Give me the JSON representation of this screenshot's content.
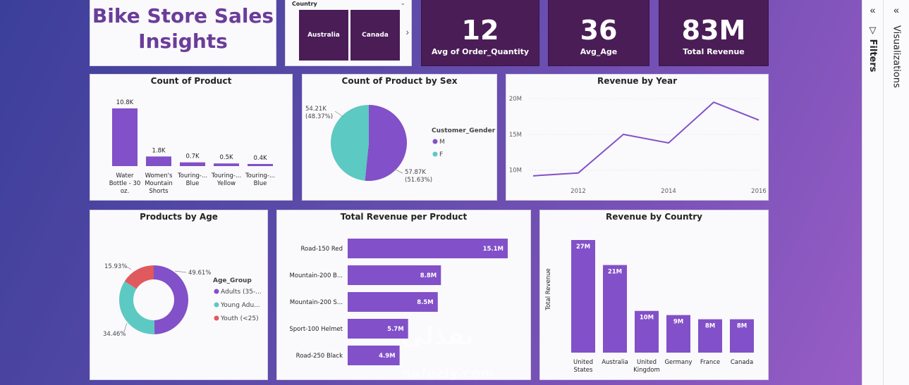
{
  "title": "Bike Store Sales Insights",
  "slicer": {
    "label": "Country",
    "options": [
      "Australia",
      "Canada"
    ]
  },
  "kpis": [
    {
      "value": "12",
      "label": "Avg of Order_Quantity"
    },
    {
      "value": "36",
      "label": "Avg_Age"
    },
    {
      "value": "83M",
      "label": "Total Revenue"
    }
  ],
  "panes": {
    "filters": "Filters",
    "visualizations": "Visualizations"
  },
  "colors": {
    "purple": "#8250c8",
    "teal": "#5cc9c3",
    "red": "#e0595f",
    "card": "#4a1d57"
  },
  "watermark": {
    "arabic": "نفذلي",
    "latin": "nafezly.com"
  },
  "chart_data": [
    {
      "id": "count_of_product",
      "type": "bar",
      "title": "Count of Product",
      "categories": [
        "Water Bottle - 30 oz.",
        "Women's Mountain Shorts",
        "Touring-... Blue",
        "Touring-... Yellow",
        "Touring-... Blue"
      ],
      "category_lines": [
        [
          "Water",
          "Bottle - 30",
          "oz."
        ],
        [
          "Women's",
          "Mountain",
          "Shorts"
        ],
        [
          "Touring-...",
          "Blue"
        ],
        [
          "Touring-...",
          "Yellow"
        ],
        [
          "Touring-...",
          "Blue"
        ]
      ],
      "values": [
        10.8,
        1.8,
        0.7,
        0.5,
        0.4
      ],
      "data_labels": [
        "10.8K",
        "1.8K",
        "0.7K",
        "0.5K",
        "0.4K"
      ],
      "unit": "K"
    },
    {
      "id": "count_by_sex",
      "type": "pie",
      "title": "Count of Product by Sex",
      "legend_title": "Customer_Gender",
      "slices": [
        {
          "name": "M",
          "value": 57.87,
          "pct": 51.63,
          "label": "57.87K",
          "pct_label": "(51.63%)"
        },
        {
          "name": "F",
          "value": 54.21,
          "pct": 48.37,
          "label": "54.21K",
          "pct_label": "(48.37%)"
        }
      ]
    },
    {
      "id": "revenue_by_year",
      "type": "line",
      "title": "Revenue by Year",
      "x": [
        2011,
        2012,
        2013,
        2014,
        2015,
        2016
      ],
      "y": [
        9.2,
        9.6,
        15.0,
        13.8,
        19.5,
        17.0
      ],
      "y_ticks": [
        "10M",
        "15M",
        "20M"
      ],
      "y_tick_values": [
        10,
        15,
        20
      ],
      "x_ticks": [
        "2012",
        "2014",
        "2016"
      ],
      "x_tick_values": [
        2012,
        2014,
        2016
      ],
      "xlim": [
        2011,
        2016
      ],
      "ylim": [
        8,
        21
      ]
    },
    {
      "id": "products_by_age",
      "type": "pie",
      "title": "Products by Age",
      "legend_title": "Age_Group",
      "slices": [
        {
          "name": "Adults (35-...",
          "pct": 49.61,
          "label": "49.61%"
        },
        {
          "name": "Young Adu...",
          "pct": 34.46,
          "label": "34.46%"
        },
        {
          "name": "Youth (<25)",
          "pct": 15.93,
          "label": "15.93%"
        }
      ]
    },
    {
      "id": "revenue_per_product",
      "type": "bar",
      "orientation": "horizontal",
      "title": "Total Revenue per Product",
      "categories": [
        "Road-150 Red",
        "Mountain-200 B...",
        "Mountain-200 S...",
        "Sport-100 Helmet",
        "Road-250 Black"
      ],
      "values": [
        15.1,
        8.8,
        8.5,
        5.7,
        4.9
      ],
      "data_labels": [
        "15.1M",
        "8.8M",
        "8.5M",
        "5.7M",
        "4.9M"
      ]
    },
    {
      "id": "revenue_by_country",
      "type": "bar",
      "title": "Revenue by Country",
      "ylabel": "Total Revenue",
      "categories": [
        "United States",
        "Australia",
        "United Kingdom",
        "Germany",
        "France",
        "Canada"
      ],
      "category_lines": [
        [
          "United",
          "States"
        ],
        [
          "Australia"
        ],
        [
          "United",
          "Kingdom"
        ],
        [
          "Germany"
        ],
        [
          "France"
        ],
        [
          "Canada"
        ]
      ],
      "values": [
        27,
        21,
        10,
        9,
        8,
        8
      ],
      "data_labels": [
        "27M",
        "21M",
        "10M",
        "9M",
        "8M",
        "8M"
      ]
    }
  ]
}
